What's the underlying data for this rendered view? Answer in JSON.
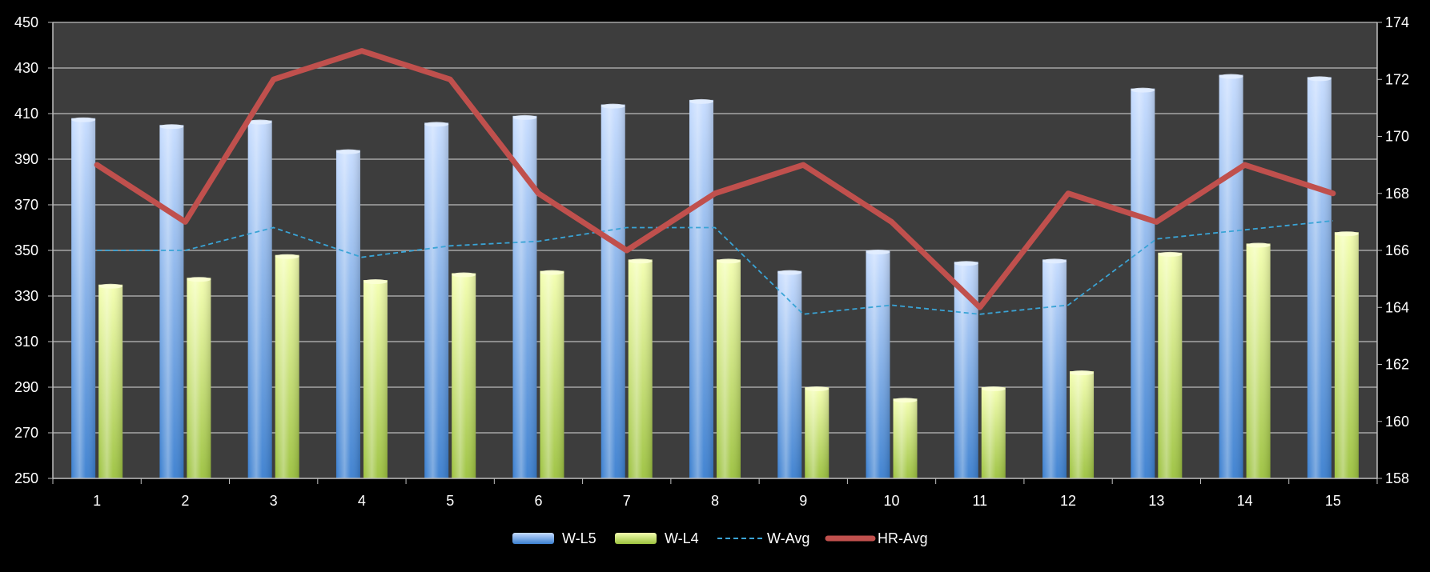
{
  "chart_data": {
    "type": "bar",
    "categories": [
      "1",
      "2",
      "3",
      "4",
      "5",
      "6",
      "7",
      "8",
      "9",
      "10",
      "11",
      "12",
      "13",
      "14",
      "15"
    ],
    "y_left": {
      "min": 250,
      "max": 450,
      "step": 20,
      "ticks": [
        "250",
        "270",
        "290",
        "310",
        "330",
        "350",
        "370",
        "390",
        "410",
        "430",
        "450"
      ]
    },
    "y_right": {
      "min": 158,
      "max": 174,
      "step": 2,
      "ticks": [
        "158",
        "160",
        "162",
        "164",
        "166",
        "168",
        "170",
        "172",
        "174"
      ]
    },
    "series": [
      {
        "name": "W-L5",
        "kind": "bar",
        "axis": "left",
        "values": [
          408,
          405,
          407,
          394,
          406,
          409,
          414,
          416,
          341,
          350,
          345,
          346,
          421,
          427,
          426
        ]
      },
      {
        "name": "W-L4",
        "kind": "bar",
        "axis": "left",
        "values": [
          335,
          338,
          348,
          337,
          340,
          341,
          346,
          346,
          290,
          285,
          290,
          297,
          349,
          353,
          358
        ]
      },
      {
        "name": "W-Avg",
        "kind": "line-dashed",
        "axis": "left",
        "values": [
          350,
          350,
          360,
          347,
          352,
          354,
          360,
          360,
          322,
          326,
          322,
          326,
          355,
          359,
          363
        ]
      },
      {
        "name": "HR-Avg",
        "kind": "line",
        "axis": "right",
        "values": [
          169,
          167,
          172,
          173,
          172,
          168,
          166,
          168,
          169,
          167,
          164,
          168,
          167,
          169,
          168
        ]
      }
    ],
    "grid": true,
    "legend_position": "bottom",
    "colors": {
      "plot_bg": "#3d3d3d",
      "gridline": "#a6a6a6",
      "bar1_top": "#c6dcff",
      "bar1_bottom": "#3a7fd0",
      "bar2_top": "#f4ffb0",
      "bar2_bottom": "#9cc23e",
      "avg_line": "#3aa4d6",
      "hr_line": "#c0504d"
    }
  }
}
